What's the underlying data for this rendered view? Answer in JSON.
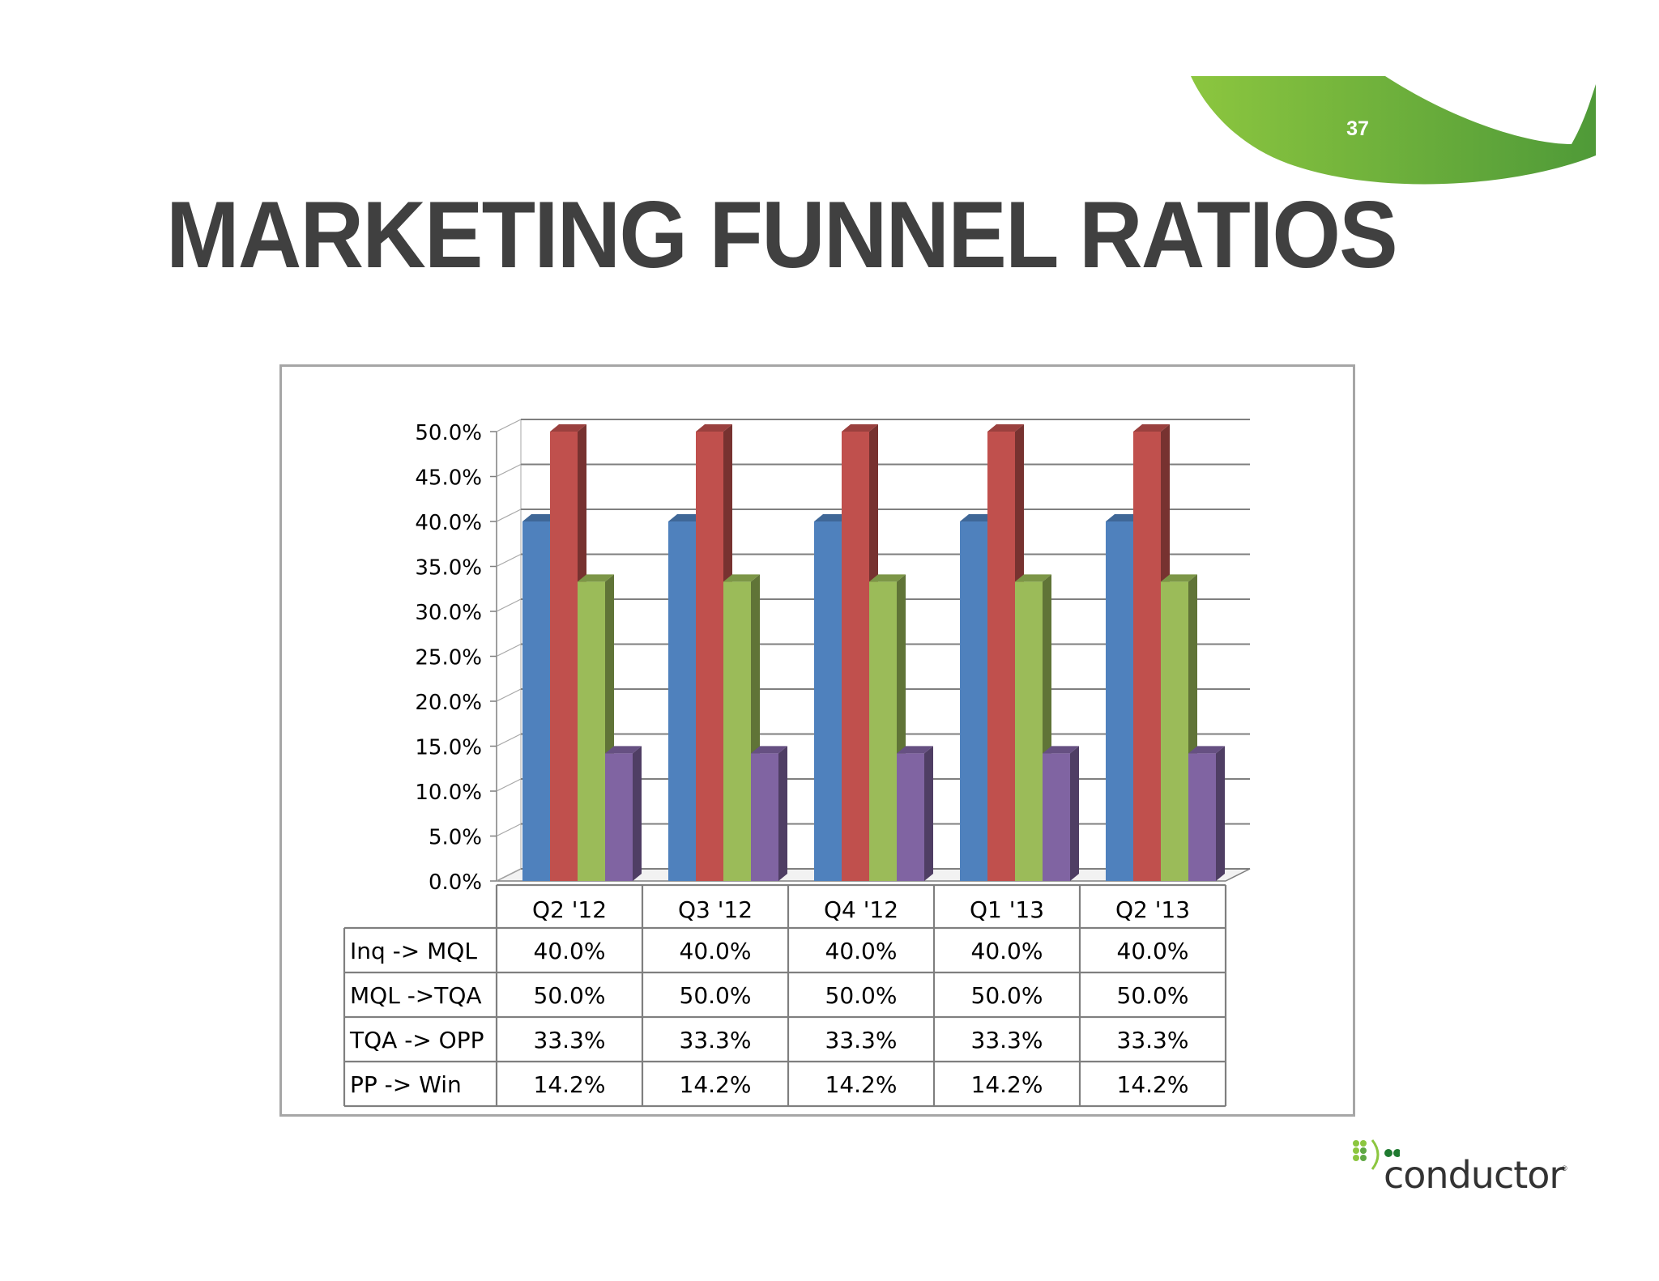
{
  "slide": {
    "page_number": "37",
    "title": "MARKETING FUNNEL RATIOS",
    "logo_text": "conductor",
    "logo_mark": "®"
  },
  "colors": {
    "title": "#404040",
    "swoosh_light": "#8cc63f",
    "swoosh_dark": "#4f9a38",
    "series": [
      "#4f81bd",
      "#c0504d",
      "#9bbb59",
      "#8064a2"
    ]
  },
  "chart_data": {
    "type": "bar",
    "variant": "3d-clustered-column-with-data-table",
    "categories": [
      "Q2 '12",
      "Q3 '12",
      "Q4 '12",
      "Q1 '13",
      "Q2 '13"
    ],
    "series": [
      {
        "name": "Inq -> MQL",
        "values": [
          40.0,
          40.0,
          40.0,
          40.0,
          40.0
        ]
      },
      {
        "name": "MQL ->TQA",
        "values": [
          50.0,
          50.0,
          50.0,
          50.0,
          50.0
        ]
      },
      {
        "name": "TQA -> OPP",
        "values": [
          33.3,
          33.3,
          33.3,
          33.3,
          33.3
        ]
      },
      {
        "name": "PP -> Win",
        "values": [
          14.2,
          14.2,
          14.2,
          14.2,
          14.2
        ]
      }
    ],
    "ylim": [
      0,
      50
    ],
    "ytick_step": 5,
    "ytick_labels": [
      "0.0%",
      "5.0%",
      "10.0%",
      "15.0%",
      "20.0%",
      "25.0%",
      "30.0%",
      "35.0%",
      "40.0%",
      "45.0%",
      "50.0%"
    ],
    "table": {
      "rows": [
        [
          "40.0%",
          "40.0%",
          "40.0%",
          "40.0%",
          "40.0%"
        ],
        [
          "50.0%",
          "50.0%",
          "50.0%",
          "50.0%",
          "50.0%"
        ],
        [
          "33.3%",
          "33.3%",
          "33.3%",
          "33.3%",
          "33.3%"
        ],
        [
          "14.2%",
          "14.2%",
          "14.2%",
          "14.2%",
          "14.2%"
        ]
      ]
    },
    "grid": true,
    "legend": "in data table",
    "title": "",
    "xlabel": "",
    "ylabel": ""
  }
}
